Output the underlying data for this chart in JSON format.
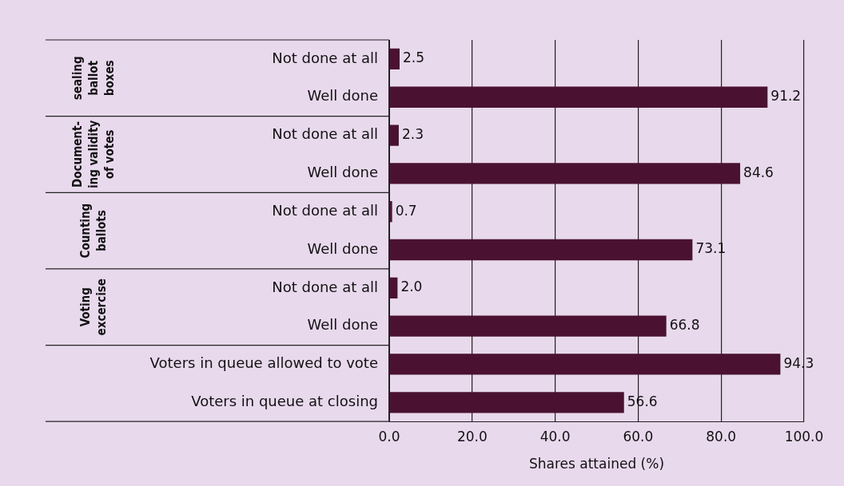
{
  "chart_data": {
    "type": "bar",
    "orientation": "horizontal",
    "xlabel": "Shares attained (%)",
    "categories": [
      "Not done at all",
      "Well done",
      "Not done at all",
      "Well done",
      "Not done at all",
      "Well done",
      "Not done at all",
      "Well done",
      "Voters in queue allowed to vote",
      "Voters in queue at closing"
    ],
    "values": [
      2.5,
      91.2,
      2.3,
      84.6,
      0.7,
      73.1,
      2.0,
      66.8,
      94.3,
      56.6
    ],
    "value_labels": [
      "2.5",
      "91.2",
      "2.3",
      "84.6",
      "0.7",
      "73.1",
      "2.0",
      "66.8",
      "94.3",
      "56.6"
    ],
    "color": "#4a1230",
    "xlim": [
      0,
      100
    ],
    "xticks": [
      {
        "value": 0,
        "label": "0.0"
      },
      {
        "value": 20,
        "label": "20.0"
      },
      {
        "value": 40,
        "label": "40.0"
      },
      {
        "value": 60,
        "label": "60.0"
      },
      {
        "value": 80,
        "label": "80.0"
      },
      {
        "value": 100,
        "label": "100.0"
      }
    ],
    "grid": "x",
    "legend": false,
    "annotations": [
      "sealing\nballot\nboxes",
      "Document-\ning validity\nof votes",
      "Counting\nballots",
      "Voting\nexcercise"
    ]
  }
}
